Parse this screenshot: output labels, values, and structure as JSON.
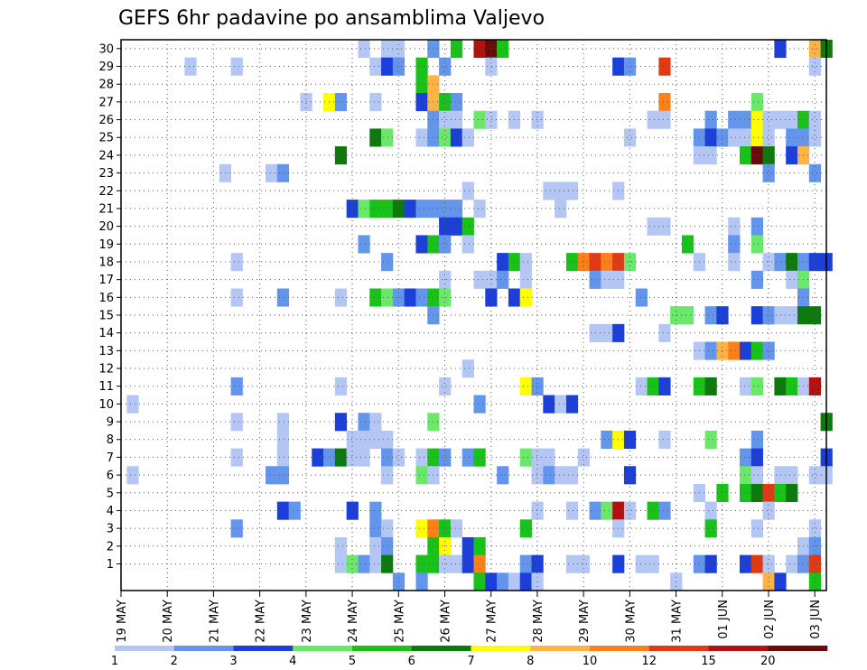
{
  "chart_data": {
    "type": "heatmap",
    "title": "GEFS 6hr padavine po ansamblima Valjevo",
    "xlabel": "",
    "ylabel": "",
    "y_ticks": [
      "1",
      "2",
      "3",
      "4",
      "5",
      "6",
      "7",
      "8",
      "9",
      "10",
      "11",
      "12",
      "13",
      "14",
      "15",
      "16",
      "17",
      "18",
      "19",
      "20",
      "21",
      "22",
      "23",
      "24",
      "25",
      "26",
      "27",
      "28",
      "29",
      "30"
    ],
    "x_ticks": [
      "19 MAY",
      "20 MAY",
      "21 MAY",
      "22 MAY",
      "23 MAY",
      "24 MAY",
      "25 MAY",
      "26 MAY",
      "27 MAY",
      "28 MAY",
      "29 MAY",
      "30 MAY",
      "31 MAY",
      "01 JUN",
      "02 JUN",
      "03 JUN"
    ],
    "x_steps": 61,
    "steps_per_day": 4,
    "grid": true,
    "colorbar": {
      "labels": [
        "1",
        "2",
        "3",
        "4",
        "5",
        "6",
        "7",
        "8",
        "10",
        "12",
        "15",
        "20"
      ],
      "colors": [
        "#b3c6f4",
        "#6495ed",
        "#1c3fd9",
        "#6ae86a",
        "#19c219",
        "#0c7a0c",
        "#ffff00",
        "#ffb347",
        "#ff7f1a",
        "#e03a14",
        "#b01212",
        "#6b0a0a"
      ]
    },
    "cells": [
      [
        21,
        30,
        1
      ],
      [
        23,
        30,
        1
      ],
      [
        24,
        30,
        1
      ],
      [
        27,
        30,
        2
      ],
      [
        29,
        30,
        5
      ],
      [
        31,
        30,
        11
      ],
      [
        32,
        30,
        12
      ],
      [
        33,
        30,
        5
      ],
      [
        57,
        30,
        3
      ],
      [
        60,
        30,
        8
      ],
      [
        61,
        30,
        6
      ],
      [
        6,
        29,
        1
      ],
      [
        10,
        29,
        1
      ],
      [
        22,
        29,
        1
      ],
      [
        23,
        29,
        3
      ],
      [
        24,
        29,
        2
      ],
      [
        26,
        29,
        5
      ],
      [
        28,
        29,
        2
      ],
      [
        32,
        29,
        1
      ],
      [
        43,
        29,
        3
      ],
      [
        44,
        29,
        2
      ],
      [
        47,
        29,
        10
      ],
      [
        60,
        29,
        1
      ],
      [
        26,
        28,
        5
      ],
      [
        27,
        28,
        8
      ],
      [
        16,
        27,
        1
      ],
      [
        18,
        27,
        7
      ],
      [
        19,
        27,
        2
      ],
      [
        22,
        27,
        1
      ],
      [
        26,
        27,
        3
      ],
      [
        27,
        27,
        8
      ],
      [
        28,
        27,
        5
      ],
      [
        29,
        27,
        2
      ],
      [
        47,
        27,
        9
      ],
      [
        55,
        27,
        4
      ],
      [
        27,
        26,
        2
      ],
      [
        28,
        26,
        1
      ],
      [
        29,
        26,
        1
      ],
      [
        31,
        26,
        4
      ],
      [
        32,
        26,
        1
      ],
      [
        34,
        26,
        1
      ],
      [
        36,
        26,
        1
      ],
      [
        46,
        26,
        1
      ],
      [
        47,
        26,
        1
      ],
      [
        51,
        26,
        2
      ],
      [
        53,
        26,
        2
      ],
      [
        54,
        26,
        2
      ],
      [
        55,
        26,
        7
      ],
      [
        56,
        26,
        1
      ],
      [
        57,
        26,
        1
      ],
      [
        58,
        26,
        1
      ],
      [
        59,
        26,
        5
      ],
      [
        60,
        26,
        1
      ],
      [
        22,
        25,
        6
      ],
      [
        23,
        25,
        4
      ],
      [
        26,
        25,
        1
      ],
      [
        27,
        25,
        2
      ],
      [
        28,
        25,
        4
      ],
      [
        29,
        25,
        3
      ],
      [
        30,
        25,
        1
      ],
      [
        44,
        25,
        1
      ],
      [
        50,
        25,
        2
      ],
      [
        51,
        25,
        3
      ],
      [
        52,
        25,
        2
      ],
      [
        53,
        25,
        1
      ],
      [
        54,
        25,
        1
      ],
      [
        55,
        25,
        7
      ],
      [
        56,
        25,
        1
      ],
      [
        58,
        25,
        2
      ],
      [
        59,
        25,
        2
      ],
      [
        60,
        25,
        1
      ],
      [
        19,
        24,
        6
      ],
      [
        50,
        24,
        1
      ],
      [
        51,
        24,
        1
      ],
      [
        54,
        24,
        5
      ],
      [
        55,
        24,
        12
      ],
      [
        56,
        24,
        6
      ],
      [
        58,
        24,
        3
      ],
      [
        59,
        24,
        8
      ],
      [
        9,
        23,
        1
      ],
      [
        13,
        23,
        1
      ],
      [
        14,
        23,
        2
      ],
      [
        56,
        23,
        2
      ],
      [
        60,
        23,
        2
      ],
      [
        30,
        22,
        1
      ],
      [
        37,
        22,
        1
      ],
      [
        38,
        22,
        1
      ],
      [
        39,
        22,
        1
      ],
      [
        43,
        22,
        1
      ],
      [
        20,
        21,
        3
      ],
      [
        21,
        21,
        4
      ],
      [
        22,
        21,
        5
      ],
      [
        23,
        21,
        5
      ],
      [
        24,
        21,
        6
      ],
      [
        25,
        21,
        3
      ],
      [
        26,
        21,
        2
      ],
      [
        27,
        21,
        2
      ],
      [
        28,
        21,
        2
      ],
      [
        29,
        21,
        2
      ],
      [
        31,
        21,
        1
      ],
      [
        38,
        21,
        1
      ],
      [
        28,
        20,
        3
      ],
      [
        29,
        20,
        3
      ],
      [
        30,
        20,
        5
      ],
      [
        46,
        20,
        1
      ],
      [
        47,
        20,
        1
      ],
      [
        53,
        20,
        1
      ],
      [
        55,
        20,
        2
      ],
      [
        21,
        19,
        2
      ],
      [
        26,
        19,
        3
      ],
      [
        27,
        19,
        5
      ],
      [
        28,
        19,
        2
      ],
      [
        30,
        19,
        1
      ],
      [
        49,
        19,
        5
      ],
      [
        53,
        19,
        2
      ],
      [
        55,
        19,
        4
      ],
      [
        10,
        18,
        1
      ],
      [
        23,
        18,
        2
      ],
      [
        33,
        18,
        3
      ],
      [
        34,
        18,
        5
      ],
      [
        35,
        18,
        1
      ],
      [
        39,
        18,
        5
      ],
      [
        40,
        18,
        9
      ],
      [
        41,
        18,
        10
      ],
      [
        42,
        18,
        9
      ],
      [
        43,
        18,
        10
      ],
      [
        44,
        18,
        4
      ],
      [
        50,
        18,
        1
      ],
      [
        53,
        18,
        1
      ],
      [
        56,
        18,
        1
      ],
      [
        57,
        18,
        2
      ],
      [
        58,
        18,
        6
      ],
      [
        59,
        18,
        2
      ],
      [
        60,
        18,
        3
      ],
      [
        61,
        18,
        3
      ],
      [
        28,
        17,
        1
      ],
      [
        31,
        17,
        1
      ],
      [
        32,
        17,
        1
      ],
      [
        33,
        17,
        2
      ],
      [
        35,
        17,
        1
      ],
      [
        41,
        17,
        2
      ],
      [
        42,
        17,
        1
      ],
      [
        43,
        17,
        1
      ],
      [
        55,
        17,
        2
      ],
      [
        58,
        17,
        1
      ],
      [
        59,
        17,
        4
      ],
      [
        10,
        16,
        1
      ],
      [
        14,
        16,
        2
      ],
      [
        19,
        16,
        1
      ],
      [
        22,
        16,
        5
      ],
      [
        23,
        16,
        4
      ],
      [
        24,
        16,
        2
      ],
      [
        25,
        16,
        3
      ],
      [
        26,
        16,
        2
      ],
      [
        27,
        16,
        5
      ],
      [
        28,
        16,
        4
      ],
      [
        32,
        16,
        3
      ],
      [
        34,
        16,
        3
      ],
      [
        35,
        16,
        7
      ],
      [
        45,
        16,
        2
      ],
      [
        59,
        16,
        2
      ],
      [
        27,
        15,
        2
      ],
      [
        48,
        15,
        4
      ],
      [
        49,
        15,
        4
      ],
      [
        51,
        15,
        2
      ],
      [
        52,
        15,
        3
      ],
      [
        55,
        15,
        3
      ],
      [
        56,
        15,
        2
      ],
      [
        57,
        15,
        1
      ],
      [
        58,
        15,
        1
      ],
      [
        59,
        15,
        6
      ],
      [
        60,
        15,
        6
      ],
      [
        41,
        14,
        1
      ],
      [
        42,
        14,
        1
      ],
      [
        43,
        14,
        3
      ],
      [
        47,
        14,
        1
      ],
      [
        50,
        13,
        1
      ],
      [
        51,
        13,
        2
      ],
      [
        52,
        13,
        8
      ],
      [
        53,
        13,
        9
      ],
      [
        54,
        13,
        3
      ],
      [
        55,
        13,
        5
      ],
      [
        56,
        13,
        2
      ],
      [
        30,
        12,
        1
      ],
      [
        10,
        11,
        2
      ],
      [
        19,
        11,
        1
      ],
      [
        28,
        11,
        1
      ],
      [
        35,
        11,
        7
      ],
      [
        36,
        11,
        2
      ],
      [
        45,
        11,
        1
      ],
      [
        46,
        11,
        5
      ],
      [
        47,
        11,
        3
      ],
      [
        50,
        11,
        5
      ],
      [
        51,
        11,
        6
      ],
      [
        54,
        11,
        1
      ],
      [
        55,
        11,
        4
      ],
      [
        57,
        11,
        6
      ],
      [
        58,
        11,
        5
      ],
      [
        59,
        11,
        1
      ],
      [
        60,
        11,
        11
      ],
      [
        1,
        10,
        1
      ],
      [
        31,
        10,
        2
      ],
      [
        37,
        10,
        3
      ],
      [
        38,
        10,
        1
      ],
      [
        39,
        10,
        3
      ],
      [
        10,
        9,
        1
      ],
      [
        14,
        9,
        1
      ],
      [
        19,
        9,
        3
      ],
      [
        21,
        9,
        2
      ],
      [
        22,
        9,
        1
      ],
      [
        27,
        9,
        4
      ],
      [
        61,
        9,
        6
      ],
      [
        14,
        8,
        1
      ],
      [
        20,
        8,
        1
      ],
      [
        21,
        8,
        1
      ],
      [
        22,
        8,
        1
      ],
      [
        23,
        8,
        1
      ],
      [
        42,
        8,
        2
      ],
      [
        43,
        8,
        7
      ],
      [
        44,
        8,
        3
      ],
      [
        47,
        8,
        1
      ],
      [
        51,
        8,
        4
      ],
      [
        55,
        8,
        2
      ],
      [
        10,
        7,
        1
      ],
      [
        14,
        7,
        1
      ],
      [
        17,
        7,
        3
      ],
      [
        18,
        7,
        2
      ],
      [
        19,
        7,
        6
      ],
      [
        20,
        7,
        1
      ],
      [
        21,
        7,
        1
      ],
      [
        23,
        7,
        2
      ],
      [
        24,
        7,
        1
      ],
      [
        26,
        7,
        1
      ],
      [
        27,
        7,
        5
      ],
      [
        28,
        7,
        2
      ],
      [
        30,
        7,
        2
      ],
      [
        31,
        7,
        5
      ],
      [
        35,
        7,
        4
      ],
      [
        36,
        7,
        1
      ],
      [
        37,
        7,
        1
      ],
      [
        40,
        7,
        1
      ],
      [
        54,
        7,
        2
      ],
      [
        55,
        7,
        3
      ],
      [
        61,
        7,
        3
      ],
      [
        1,
        6,
        1
      ],
      [
        13,
        6,
        2
      ],
      [
        14,
        6,
        2
      ],
      [
        23,
        6,
        1
      ],
      [
        26,
        6,
        4
      ],
      [
        27,
        6,
        1
      ],
      [
        33,
        6,
        2
      ],
      [
        36,
        6,
        1
      ],
      [
        37,
        6,
        2
      ],
      [
        38,
        6,
        1
      ],
      [
        39,
        6,
        1
      ],
      [
        44,
        6,
        3
      ],
      [
        54,
        6,
        4
      ],
      [
        55,
        6,
        1
      ],
      [
        57,
        6,
        1
      ],
      [
        58,
        6,
        1
      ],
      [
        60,
        6,
        1
      ],
      [
        61,
        6,
        1
      ],
      [
        50,
        5,
        1
      ],
      [
        52,
        5,
        5
      ],
      [
        54,
        5,
        5
      ],
      [
        55,
        5,
        6
      ],
      [
        56,
        5,
        10
      ],
      [
        57,
        5,
        5
      ],
      [
        58,
        5,
        6
      ],
      [
        14,
        4,
        3
      ],
      [
        15,
        4,
        2
      ],
      [
        20,
        4,
        3
      ],
      [
        22,
        4,
        2
      ],
      [
        36,
        4,
        1
      ],
      [
        39,
        4,
        1
      ],
      [
        41,
        4,
        2
      ],
      [
        42,
        4,
        4
      ],
      [
        43,
        4,
        11
      ],
      [
        44,
        4,
        1
      ],
      [
        46,
        4,
        5
      ],
      [
        47,
        4,
        2
      ],
      [
        51,
        4,
        1
      ],
      [
        56,
        4,
        1
      ],
      [
        10,
        3,
        2
      ],
      [
        22,
        3,
        2
      ],
      [
        23,
        3,
        1
      ],
      [
        26,
        3,
        7
      ],
      [
        27,
        3,
        9
      ],
      [
        28,
        3,
        5
      ],
      [
        29,
        3,
        1
      ],
      [
        35,
        3,
        5
      ],
      [
        43,
        3,
        1
      ],
      [
        51,
        3,
        5
      ],
      [
        55,
        3,
        1
      ],
      [
        60,
        3,
        1
      ],
      [
        19,
        2,
        1
      ],
      [
        22,
        2,
        1
      ],
      [
        23,
        2,
        2
      ],
      [
        27,
        2,
        5
      ],
      [
        28,
        2,
        7
      ],
      [
        30,
        2,
        3
      ],
      [
        31,
        2,
        5
      ],
      [
        59,
        2,
        1
      ],
      [
        60,
        2,
        2
      ],
      [
        19,
        1,
        1
      ],
      [
        20,
        1,
        4
      ],
      [
        21,
        1,
        2
      ],
      [
        22,
        1,
        1
      ],
      [
        23,
        1,
        6
      ],
      [
        26,
        1,
        5
      ],
      [
        27,
        1,
        5
      ],
      [
        28,
        1,
        1
      ],
      [
        29,
        1,
        1
      ],
      [
        30,
        1,
        3
      ],
      [
        31,
        1,
        9
      ],
      [
        35,
        1,
        2
      ],
      [
        36,
        1,
        3
      ],
      [
        39,
        1,
        1
      ],
      [
        40,
        1,
        1
      ],
      [
        43,
        1,
        3
      ],
      [
        45,
        1,
        1
      ],
      [
        46,
        1,
        1
      ],
      [
        50,
        1,
        2
      ],
      [
        51,
        1,
        3
      ],
      [
        54,
        1,
        3
      ],
      [
        55,
        1,
        10
      ],
      [
        56,
        1,
        1
      ],
      [
        58,
        1,
        1
      ],
      [
        59,
        1,
        2
      ],
      [
        60,
        1,
        10
      ],
      [
        24,
        0,
        2
      ],
      [
        26,
        0,
        2
      ],
      [
        31,
        0,
        5
      ],
      [
        32,
        0,
        3
      ],
      [
        33,
        0,
        2
      ],
      [
        34,
        0,
        1
      ],
      [
        35,
        0,
        3
      ],
      [
        36,
        0,
        1
      ],
      [
        48,
        0,
        1
      ],
      [
        56,
        0,
        8
      ],
      [
        57,
        0,
        3
      ],
      [
        60,
        0,
        5
      ]
    ]
  }
}
